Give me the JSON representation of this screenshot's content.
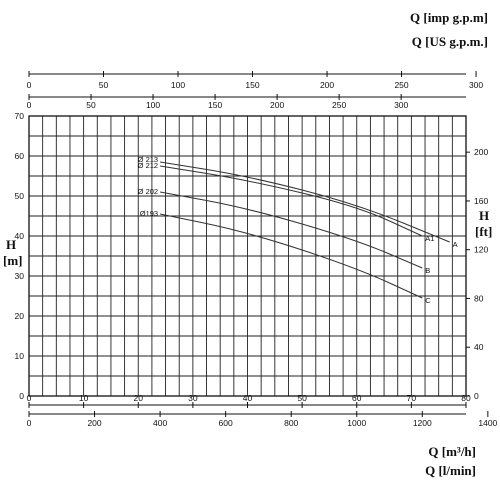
{
  "units": {
    "imp_gpm": "Q [imp g.p.m]",
    "us_gpm": "Q [US g.p.m.]",
    "m3h": "Q [m³/h]",
    "lmin": "Q [l/min]",
    "h_m_top": "H",
    "h_m_bottom": "[m]",
    "h_ft_top": "H",
    "h_ft_bottom": "[ft]"
  },
  "chart_data": {
    "type": "line",
    "title": "",
    "xlabel": "Q [m³/h]",
    "ylabel": "H [m]",
    "xlim": [
      0,
      80
    ],
    "ylim": [
      0,
      70
    ],
    "grid": true,
    "x_ticks": [
      0,
      10,
      20,
      30,
      40,
      50,
      60,
      70,
      80
    ],
    "y_ticks": [
      0,
      10,
      20,
      30,
      40,
      50,
      60,
      70
    ],
    "secondary_axes": {
      "lmin_ticks": [
        0,
        200,
        400,
        600,
        800,
        1000,
        1200,
        1400
      ],
      "us_gpm_ticks": [
        0,
        50,
        100,
        150,
        200,
        250,
        300
      ],
      "imp_gpm_ticks": [
        0,
        50,
        100,
        150,
        200,
        250,
        300
      ],
      "ft_ticks": [
        0,
        40,
        80,
        120,
        160,
        200
      ]
    },
    "series": [
      {
        "name": "Ø 213",
        "end_label": "A",
        "x": [
          24,
          40,
          60,
          77
        ],
        "y": [
          58.5,
          55,
          48,
          38.5
        ]
      },
      {
        "name": "Ø 212",
        "end_label": "A1",
        "x": [
          24,
          40,
          60,
          72
        ],
        "y": [
          57.5,
          54,
          47.5,
          40
        ]
      },
      {
        "name": "Ø 202",
        "end_label": "B",
        "x": [
          24,
          40,
          60,
          72
        ],
        "y": [
          51,
          47,
          39,
          32
        ]
      },
      {
        "name": "Ø193",
        "end_label": "C",
        "x": [
          24,
          40,
          60,
          72
        ],
        "y": [
          45.5,
          41,
          32,
          24.5
        ]
      }
    ]
  }
}
